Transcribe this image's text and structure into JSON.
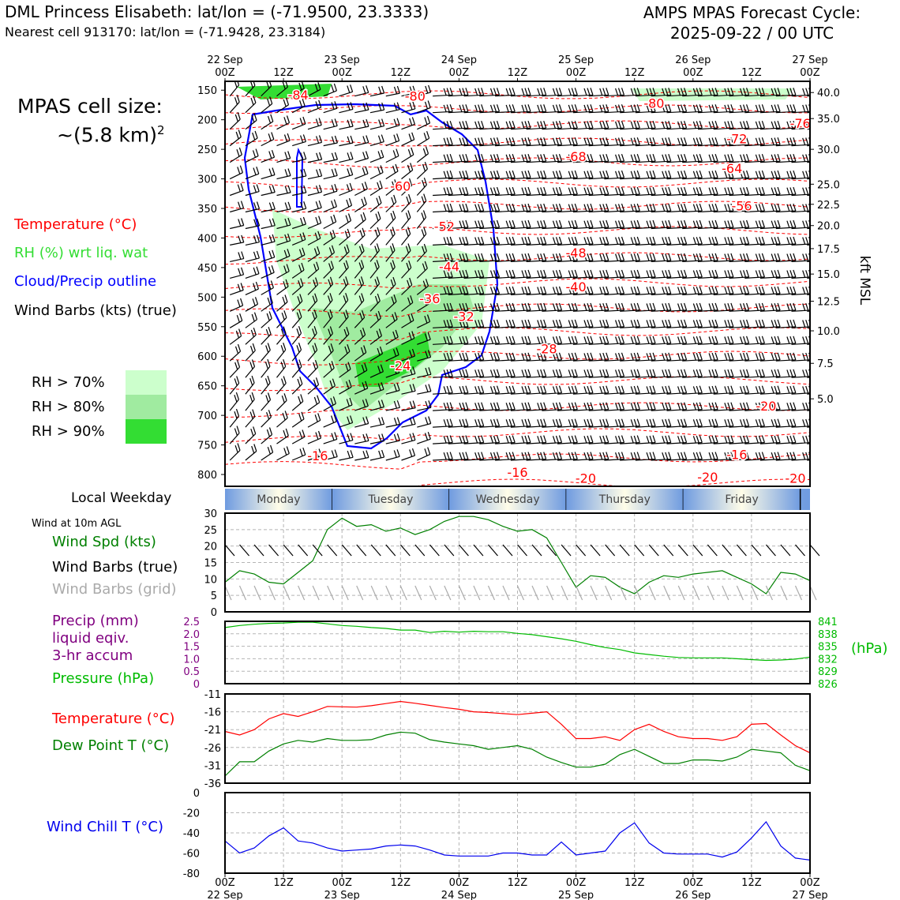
{
  "header": {
    "title_left": "DML Princess Elisabeth: lat/lon = (-71.9500, 23.3333)",
    "subtitle_left": "Nearest cell 913170: lat/lon = (-71.9428, 23.3184)",
    "title_right_line1": "AMPS MPAS Forecast Cycle:",
    "title_right_line2": "2025-09-22 / 00 UTC"
  },
  "sidebar": {
    "cell_size_line1": "MPAS cell size:",
    "cell_size_line2": "~(5.8 km)",
    "cell_size_sup": "2",
    "legend_temp": "Temperature (°C)",
    "legend_rh": "RH (%) wrt liq. wat",
    "legend_cloud": "Cloud/Precip outline",
    "legend_wind": "Wind Barbs (kts) (true)",
    "rh_70": "RH > 70%",
    "rh_80": "RH > 80%",
    "rh_90": "RH > 90%",
    "local_weekday": "Local Weekday",
    "wind_10m": "Wind at 10m AGL",
    "wind_spd": "Wind Spd (kts)",
    "wind_barbs_true": "Wind Barbs (true)",
    "wind_barbs_grid": "Wind Barbs (grid)",
    "precip_l1": "Precip (mm)",
    "precip_l2": "liquid eqiv.",
    "precip_l3": "3-hr accum",
    "pressure": "Pressure (hPa)",
    "temperature": "Temperature (°C)",
    "dewpoint": "Dew Point T (°C)",
    "windchill": "Wind Chill T (°C)"
  },
  "colors": {
    "temp": "#ff0000",
    "rh_text": "#33dd33",
    "cloud": "#0000ff",
    "rh70": "#ccffcc",
    "rh80": "#a0eba0",
    "rh90": "#33dd33",
    "wind_spd": "#008000",
    "grid_barb": "#aaaaaa",
    "precip": "#800080",
    "pressure": "#00bb00",
    "dewpoint": "#008000",
    "windchill": "#0000ee"
  },
  "time_axis": {
    "top_labels": [
      {
        "t": 0,
        "line1": "22 Sep",
        "line2": "00Z"
      },
      {
        "t": 12,
        "line1": "",
        "line2": "12Z"
      },
      {
        "t": 24,
        "line1": "23 Sep",
        "line2": "00Z"
      },
      {
        "t": 36,
        "line1": "",
        "line2": "12Z"
      },
      {
        "t": 48,
        "line1": "24 Sep",
        "line2": "00Z"
      },
      {
        "t": 60,
        "line1": "",
        "line2": "12Z"
      },
      {
        "t": 72,
        "line1": "25 Sep",
        "line2": "00Z"
      },
      {
        "t": 84,
        "line1": "",
        "line2": "12Z"
      },
      {
        "t": 96,
        "line1": "26 Sep",
        "line2": "00Z"
      },
      {
        "t": 108,
        "line1": "",
        "line2": "12Z"
      },
      {
        "t": 120,
        "line1": "27 Sep",
        "line2": "00Z"
      }
    ],
    "weekdays": [
      {
        "start": 0,
        "end": 22,
        "name": "Monday"
      },
      {
        "start": 22,
        "end": 46,
        "name": "Tuesday"
      },
      {
        "start": 46,
        "end": 70,
        "name": "Wednesday"
      },
      {
        "start": 70,
        "end": 94,
        "name": "Thursday"
      },
      {
        "start": 94,
        "end": 118,
        "name": "Friday"
      }
    ]
  },
  "chart_data": [
    {
      "type": "heatmap",
      "name": "cross-section",
      "x_hours": [
        0,
        120
      ],
      "y_pressure_ticks": [
        150,
        200,
        250,
        300,
        350,
        400,
        450,
        500,
        550,
        600,
        650,
        700,
        750,
        800
      ],
      "ylim": [
        135,
        820
      ],
      "right_axis_label": "kft MSL",
      "right_ticks": [
        {
          "p": 154,
          "label": "40.0"
        },
        {
          "p": 198,
          "label": "35.0"
        },
        {
          "p": 250,
          "label": "30.0"
        },
        {
          "p": 309,
          "label": "25.0"
        },
        {
          "p": 343,
          "label": "22.5"
        },
        {
          "p": 379,
          "label": "20.0"
        },
        {
          "p": 418,
          "label": "17.5"
        },
        {
          "p": 461,
          "label": "15.0"
        },
        {
          "p": 507,
          "label": "12.5"
        },
        {
          "p": 557,
          "label": "10.0"
        },
        {
          "p": 612,
          "label": "7.5"
        },
        {
          "p": 672,
          "label": "5.0"
        }
      ],
      "temp_labels": [
        {
          "t": 15,
          "p": 158,
          "v": "-84"
        },
        {
          "t": 39,
          "p": 160,
          "v": "-80"
        },
        {
          "t": 88,
          "p": 172,
          "v": "-80"
        },
        {
          "t": 118,
          "p": 206,
          "v": "-76"
        },
        {
          "t": 105,
          "p": 232,
          "v": "-72"
        },
        {
          "t": 72,
          "p": 262,
          "v": "-68"
        },
        {
          "t": 104,
          "p": 282,
          "v": "-64"
        },
        {
          "t": 36,
          "p": 312,
          "v": "-60"
        },
        {
          "t": 106,
          "p": 345,
          "v": "-56"
        },
        {
          "t": 45,
          "p": 380,
          "v": "-52"
        },
        {
          "t": 72,
          "p": 425,
          "v": "-48"
        },
        {
          "t": 46,
          "p": 448,
          "v": "-44"
        },
        {
          "t": 72,
          "p": 482,
          "v": "-40"
        },
        {
          "t": 42,
          "p": 502,
          "v": "-36"
        },
        {
          "t": 49,
          "p": 532,
          "v": "-32"
        },
        {
          "t": 66,
          "p": 587,
          "v": "-28"
        },
        {
          "t": 36,
          "p": 616,
          "v": "-24"
        },
        {
          "t": 111,
          "p": 684,
          "v": "-20"
        },
        {
          "t": 74,
          "p": 806,
          "v": "-20"
        },
        {
          "t": 99,
          "p": 804,
          "v": "-20"
        },
        {
          "t": 117,
          "p": 806,
          "v": "-20"
        },
        {
          "t": 19,
          "p": 768,
          "v": "-16"
        },
        {
          "t": 105,
          "p": 766,
          "v": "-16"
        },
        {
          "t": 60,
          "p": 796,
          "v": "-16"
        }
      ]
    },
    {
      "type": "line",
      "name": "wind-speed",
      "ylabel": "Wind Spd (kts)",
      "ylim": [
        0,
        30
      ],
      "yticks": [
        0,
        5,
        10,
        15,
        20,
        25,
        30
      ],
      "x": [
        0,
        3,
        6,
        9,
        12,
        15,
        18,
        21,
        24,
        27,
        30,
        33,
        36,
        39,
        42,
        45,
        48,
        51,
        54,
        57,
        60,
        63,
        66,
        69,
        72,
        75,
        78,
        81,
        84,
        87,
        90,
        93,
        96,
        99,
        102,
        105,
        108,
        111,
        114,
        117,
        120
      ],
      "values": [
        9,
        12.5,
        11.5,
        9,
        8.5,
        12,
        15.5,
        25,
        28.5,
        26,
        26.5,
        24.5,
        25.5,
        23.5,
        25,
        27.5,
        29,
        29,
        28,
        26,
        24.5,
        25,
        22.5,
        15,
        7.5,
        11,
        10.5,
        7.5,
        5.5,
        9,
        11,
        10.5,
        11.5,
        12,
        12.5,
        10.5,
        8.5,
        5.5,
        12,
        11.5,
        9.5
      ]
    },
    {
      "type": "line",
      "name": "precip-pressure",
      "y_left_label": "Precip (mm)",
      "ylim_left": [
        0,
        2.5
      ],
      "yticks_left": [
        0,
        0.5,
        1.0,
        1.5,
        2.0,
        2.5
      ],
      "ylim_right": [
        826,
        841
      ],
      "yticks_right": [
        826,
        829,
        832,
        835,
        838,
        841
      ],
      "y_right_label": "(hPa)",
      "x": [
        0,
        3,
        6,
        9,
        12,
        15,
        18,
        21,
        24,
        27,
        30,
        33,
        36,
        39,
        42,
        45,
        48,
        51,
        54,
        57,
        60,
        63,
        66,
        69,
        72,
        75,
        78,
        81,
        84,
        87,
        90,
        93,
        96,
        99,
        102,
        105,
        108,
        111,
        114,
        117,
        120
      ],
      "pressure": [
        839.5,
        840,
        840.3,
        840.5,
        840.6,
        840.8,
        840.8,
        840.4,
        840.0,
        839.8,
        839.5,
        839.3,
        838.9,
        838.9,
        838.3,
        838.6,
        838.4,
        838.6,
        838.5,
        838.5,
        838.1,
        837.8,
        837.3,
        836.8,
        836.2,
        835.4,
        834.7,
        834.2,
        833.4,
        833.0,
        832.6,
        832.3,
        832.2,
        832.2,
        832.2,
        832.0,
        831.8,
        831.6,
        831.7,
        831.9,
        832.4
      ]
    },
    {
      "type": "line",
      "name": "temperature-dewpoint",
      "ylim": [
        -36,
        -11
      ],
      "yticks": [
        -36,
        -31,
        -26,
        -21,
        -16,
        -11
      ],
      "x": [
        0,
        3,
        6,
        9,
        12,
        15,
        18,
        21,
        24,
        27,
        30,
        33,
        36,
        39,
        42,
        45,
        48,
        51,
        54,
        57,
        60,
        63,
        66,
        69,
        72,
        75,
        78,
        81,
        84,
        87,
        90,
        93,
        96,
        99,
        102,
        105,
        108,
        111,
        114,
        117,
        120
      ],
      "series": [
        {
          "name": "Temperature (°C)",
          "values": [
            -21.5,
            -22.5,
            -21,
            -18,
            -16.5,
            -17.3,
            -16,
            -14.5,
            -14.6,
            -14.7,
            -14.3,
            -13.7,
            -13.1,
            -13.6,
            -14.2,
            -14.8,
            -15.3,
            -16,
            -16.2,
            -16.5,
            -16.8,
            -16.4,
            -16,
            -19.5,
            -23.5,
            -23.5,
            -23,
            -24,
            -21,
            -19.5,
            -21.5,
            -23,
            -23.5,
            -23.5,
            -24,
            -23,
            -19.5,
            -19.3,
            -22.5,
            -25.5,
            -27.5
          ]
        },
        {
          "name": "Dew Point T (°C)",
          "values": [
            -34,
            -30,
            -30,
            -27,
            -25,
            -24,
            -24.5,
            -23.5,
            -24,
            -24,
            -23.8,
            -22.5,
            -21.7,
            -22,
            -23.8,
            -24.5,
            -25,
            -25.5,
            -26.5,
            -26,
            -25.5,
            -26.5,
            -28.7,
            -30.2,
            -31.5,
            -31.5,
            -30.7,
            -28,
            -26.5,
            -28.5,
            -30.5,
            -30.5,
            -29.5,
            -29.5,
            -29.8,
            -28.7,
            -26.5,
            -27,
            -27.5,
            -31,
            -32.5
          ]
        }
      ]
    },
    {
      "type": "line",
      "name": "wind-chill",
      "ylim": [
        -80,
        0
      ],
      "yticks": [
        -80,
        -60,
        -40,
        -20,
        0
      ],
      "x": [
        0,
        3,
        6,
        9,
        12,
        15,
        18,
        21,
        24,
        27,
        30,
        33,
        36,
        39,
        42,
        45,
        48,
        51,
        54,
        57,
        60,
        63,
        66,
        69,
        72,
        75,
        78,
        81,
        84,
        87,
        90,
        93,
        96,
        99,
        102,
        105,
        108,
        111,
        114,
        117,
        120
      ],
      "values": [
        -48,
        -60,
        -55,
        -43,
        -35,
        -48,
        -50,
        -55,
        -58,
        -57,
        -56,
        -53,
        -52,
        -53,
        -57,
        -62,
        -63,
        -63,
        -63,
        -60,
        -60,
        -62,
        -62,
        -49,
        -62,
        -60,
        -58,
        -40,
        -30,
        -50,
        -60,
        -61,
        -61,
        -61,
        -64,
        -59,
        -45,
        -29,
        -53,
        -65,
        -67
      ]
    }
  ]
}
